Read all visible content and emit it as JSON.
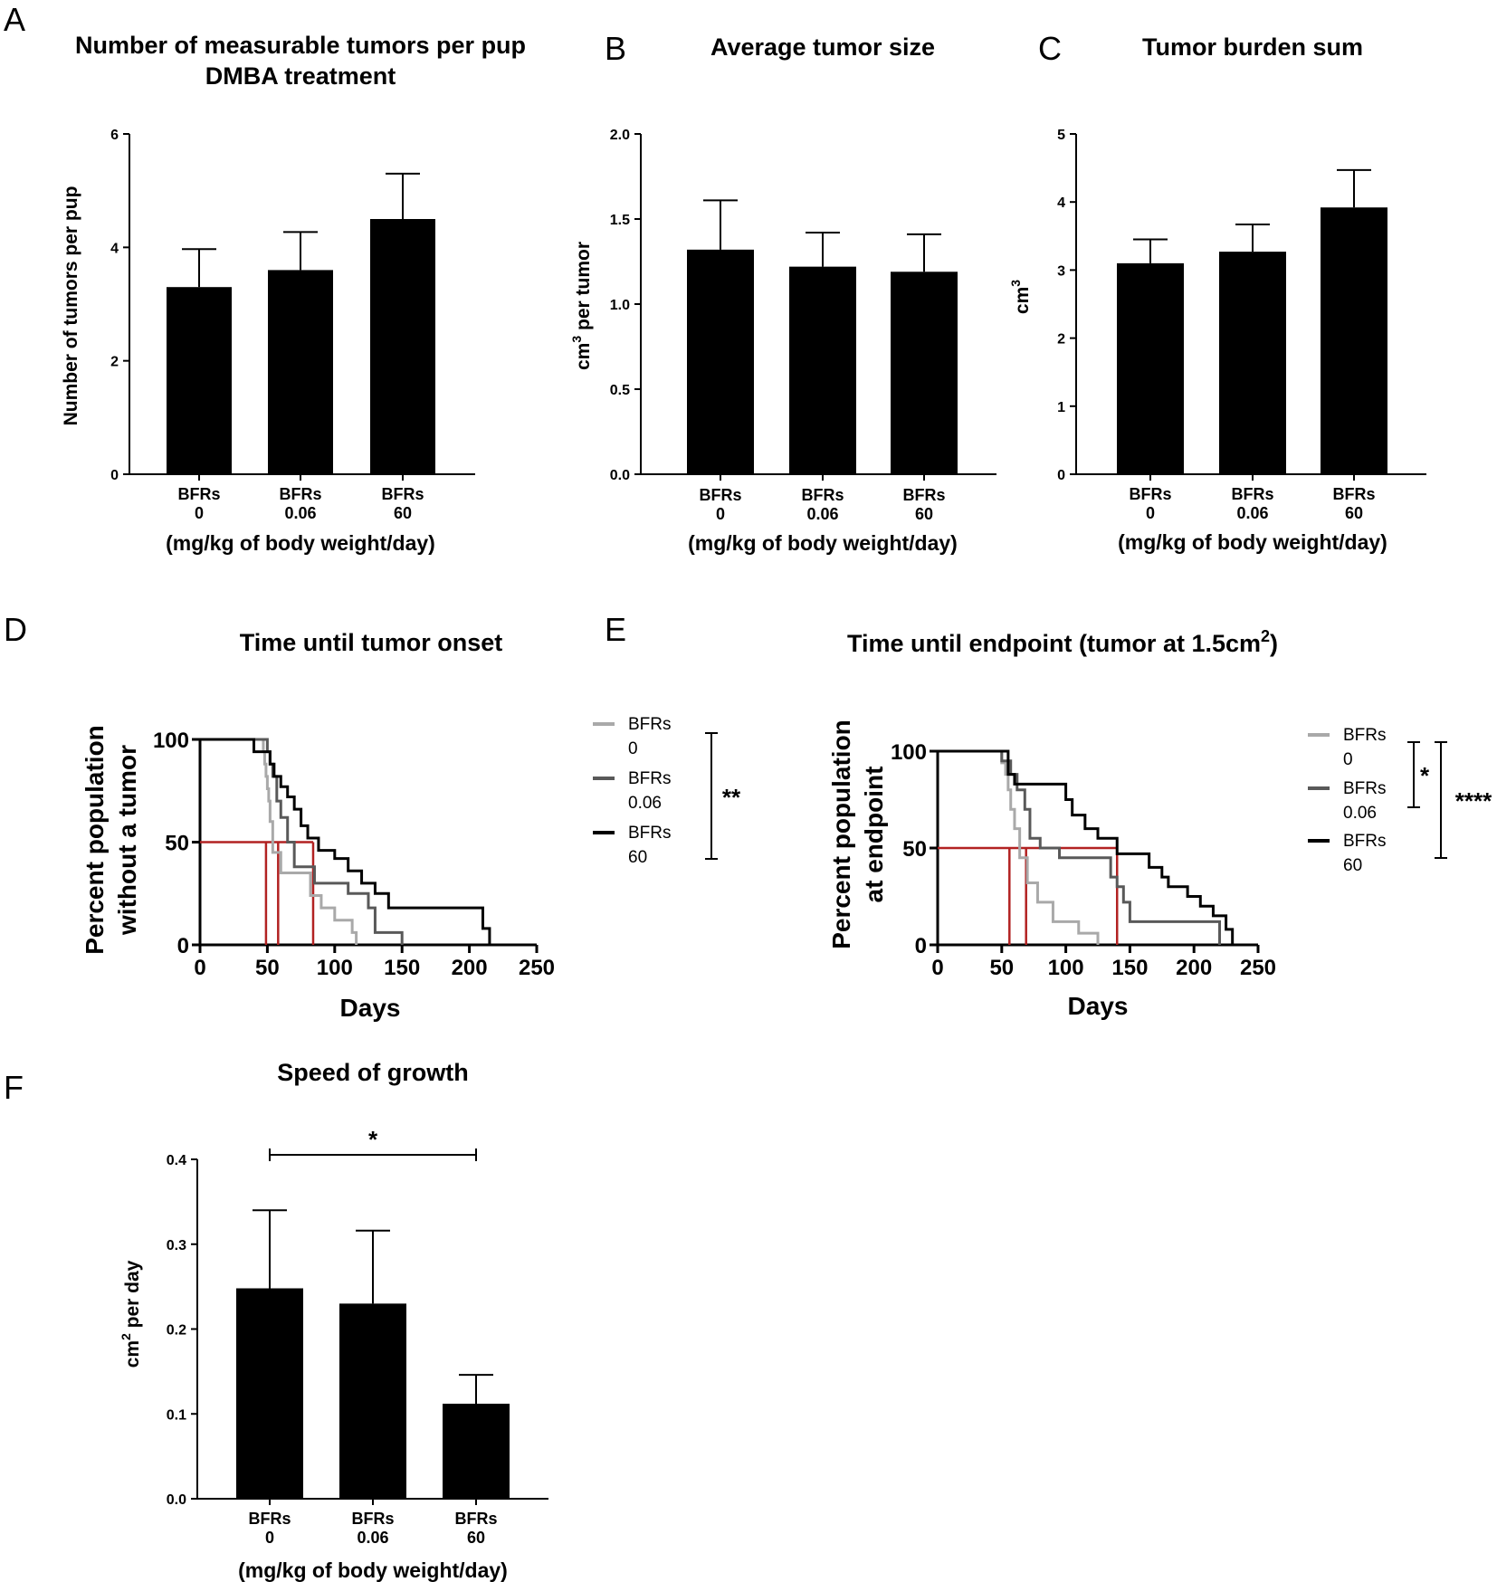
{
  "panels": {
    "A": {
      "label": "A"
    },
    "B": {
      "label": "B"
    },
    "C": {
      "label": "C"
    },
    "D": {
      "label": "D"
    },
    "E": {
      "label": "E"
    },
    "F": {
      "label": "F"
    }
  },
  "chart_data": [
    {
      "id": "A",
      "type": "bar",
      "title": "Number of measurable tumors per pup",
      "subtitle": "DMBA treatment",
      "categories": [
        "BFRs 0",
        "BFRs 0.06",
        "BFRs 60"
      ],
      "category_lines": [
        [
          "BFRs",
          "0"
        ],
        [
          "BFRs",
          "0.06"
        ],
        [
          "BFRs",
          "60"
        ]
      ],
      "values": [
        3.3,
        3.6,
        4.5
      ],
      "errors": [
        0.67,
        0.67,
        0.8
      ],
      "ylim": [
        0,
        6
      ],
      "yticks": [
        0,
        2,
        4,
        6
      ],
      "ytick_labels": [
        "0",
        "2",
        "4",
        "6"
      ],
      "ylabel": "Number of tumors per pup",
      "xlabel": "(mg/kg of body weight/day)"
    },
    {
      "id": "B",
      "type": "bar",
      "title": "Average tumor size",
      "categories": [
        "BFRs 0",
        "BFRs 0.06",
        "BFRs 60"
      ],
      "category_lines": [
        [
          "BFRs",
          "0"
        ],
        [
          "BFRs",
          "0.06"
        ],
        [
          "BFRs",
          "60"
        ]
      ],
      "values": [
        1.32,
        1.22,
        1.19
      ],
      "errors": [
        0.29,
        0.2,
        0.22
      ],
      "ylim": [
        0,
        2.0
      ],
      "yticks": [
        0,
        0.5,
        1.0,
        1.5,
        2.0
      ],
      "ytick_labels": [
        "0.0",
        "0.5",
        "1.0",
        "1.5",
        "2.0"
      ],
      "ylabel_main": "cm",
      "ylabel_sup": "3",
      "ylabel_rest": " per tumor",
      "xlabel": "(mg/kg of body weight/day)"
    },
    {
      "id": "C",
      "type": "bar",
      "title": "Tumor burden sum",
      "categories": [
        "BFRs 0",
        "BFRs 0.06",
        "BFRs 60"
      ],
      "category_lines": [
        [
          "BFRs",
          "0"
        ],
        [
          "BFRs",
          "0.06"
        ],
        [
          "BFRs",
          "60"
        ]
      ],
      "values": [
        3.1,
        3.27,
        3.92
      ],
      "errors": [
        0.35,
        0.4,
        0.55
      ],
      "ylim": [
        0,
        5
      ],
      "yticks": [
        0,
        1,
        2,
        3,
        4,
        5
      ],
      "ytick_labels": [
        "0",
        "1",
        "2",
        "3",
        "4",
        "5"
      ],
      "ylabel_main": "cm",
      "ylabel_sup": "3",
      "xlabel": "(mg/kg of body weight/day)"
    },
    {
      "id": "D",
      "type": "line",
      "title": "Time until tumor onset",
      "xlabel": "Days",
      "ylabel_line1": "Percent population",
      "ylabel_line2": "without a tumor",
      "xlim": [
        0,
        250
      ],
      "ylim": [
        0,
        100
      ],
      "xticks": [
        0,
        50,
        100,
        150,
        200,
        250
      ],
      "yticks": [
        0,
        50,
        100
      ],
      "series": [
        {
          "name": "BFRs 0",
          "legend_lines": [
            "BFRs",
            "0"
          ],
          "color": "#a9a9a9",
          "x": [
            0,
            40,
            47,
            48,
            49,
            50,
            51,
            52,
            54,
            60,
            82,
            90,
            100,
            113,
            116
          ],
          "y": [
            100,
            100,
            94,
            88,
            82,
            76,
            70,
            60,
            45,
            35,
            24,
            18,
            12,
            6,
            0
          ]
        },
        {
          "name": "BFRs 0.06",
          "legend_lines": [
            "BFRs",
            "0.06"
          ],
          "color": "#595959",
          "x": [
            0,
            45,
            50,
            52,
            54,
            57,
            60,
            65,
            70,
            85,
            110,
            125,
            130,
            150
          ],
          "y": [
            100,
            100,
            94,
            88,
            82,
            70,
            62,
            50,
            38,
            30,
            25,
            18,
            6,
            0
          ]
        },
        {
          "name": "BFRs 60",
          "legend_lines": [
            "BFRs",
            "60"
          ],
          "color": "#000000",
          "x": [
            0,
            30,
            40,
            52,
            55,
            60,
            65,
            70,
            75,
            80,
            88,
            100,
            110,
            120,
            130,
            140,
            150,
            170,
            210,
            215
          ],
          "y": [
            100,
            100,
            94,
            88,
            82,
            77,
            72,
            66,
            58,
            52,
            46,
            42,
            36,
            30,
            25,
            18,
            18,
            18,
            8,
            0
          ]
        }
      ],
      "median_lines": [
        49,
        58,
        84
      ],
      "significance": "**",
      "median_color": "#b22222"
    },
    {
      "id": "E",
      "type": "line",
      "title_main": "Time until endpoint (tumor at 1.5cm",
      "title_sup": "2",
      "title_end": ")",
      "xlabel": "Days",
      "ylabel_line1": "Percent population",
      "ylabel_line2": "at endpoint",
      "xlim": [
        0,
        250
      ],
      "ylim": [
        0,
        100
      ],
      "xticks": [
        0,
        50,
        100,
        150,
        200,
        250
      ],
      "yticks": [
        0,
        50,
        100
      ],
      "series": [
        {
          "name": "BFRs 0",
          "legend_lines": [
            "BFRs",
            "0"
          ],
          "color": "#a9a9a9",
          "x": [
            0,
            45,
            50,
            53,
            55,
            57,
            60,
            64,
            70,
            78,
            90,
            110,
            125
          ],
          "y": [
            100,
            100,
            94,
            88,
            80,
            70,
            60,
            45,
            32,
            22,
            12,
            6,
            0
          ]
        },
        {
          "name": "BFRs 0.06",
          "legend_lines": [
            "BFRs",
            "0.06"
          ],
          "color": "#595959",
          "x": [
            0,
            45,
            50,
            57,
            62,
            68,
            72,
            80,
            95,
            135,
            140,
            145,
            150,
            165,
            180,
            220
          ],
          "y": [
            100,
            100,
            95,
            88,
            80,
            70,
            55,
            50,
            45,
            35,
            30,
            22,
            12,
            12,
            12,
            0
          ]
        },
        {
          "name": "BFRs 60",
          "legend_lines": [
            "BFRs",
            "60"
          ],
          "color": "#000000",
          "x": [
            0,
            45,
            55,
            60,
            100,
            105,
            115,
            125,
            140,
            165,
            175,
            180,
            195,
            205,
            215,
            225,
            230
          ],
          "y": [
            100,
            100,
            88,
            83,
            75,
            67,
            60,
            55,
            47,
            40,
            35,
            30,
            25,
            20,
            15,
            8,
            0
          ]
        }
      ],
      "median_lines": [
        56,
        69,
        140
      ],
      "significance_inner": "*",
      "significance_outer": "****",
      "median_color": "#b22222"
    },
    {
      "id": "F",
      "type": "bar",
      "title": "Speed of growth",
      "categories": [
        "BFRs 0",
        "BFRs 0.06",
        "BFRs 60"
      ],
      "category_lines": [
        [
          "BFRs",
          "0"
        ],
        [
          "BFRs",
          "0.06"
        ],
        [
          "BFRs",
          "60"
        ]
      ],
      "values": [
        0.248,
        0.23,
        0.112
      ],
      "errors": [
        0.092,
        0.086,
        0.034
      ],
      "ylim": [
        0,
        0.4
      ],
      "yticks": [
        0,
        0.1,
        0.2,
        0.3,
        0.4
      ],
      "ytick_labels": [
        "0.0",
        "0.1",
        "0.2",
        "0.3",
        "0.4"
      ],
      "ylabel_main": "cm",
      "ylabel_sup": "2",
      "ylabel_rest": " per day",
      "xlabel": "(mg/kg of body weight/day)",
      "significance": "*"
    }
  ]
}
